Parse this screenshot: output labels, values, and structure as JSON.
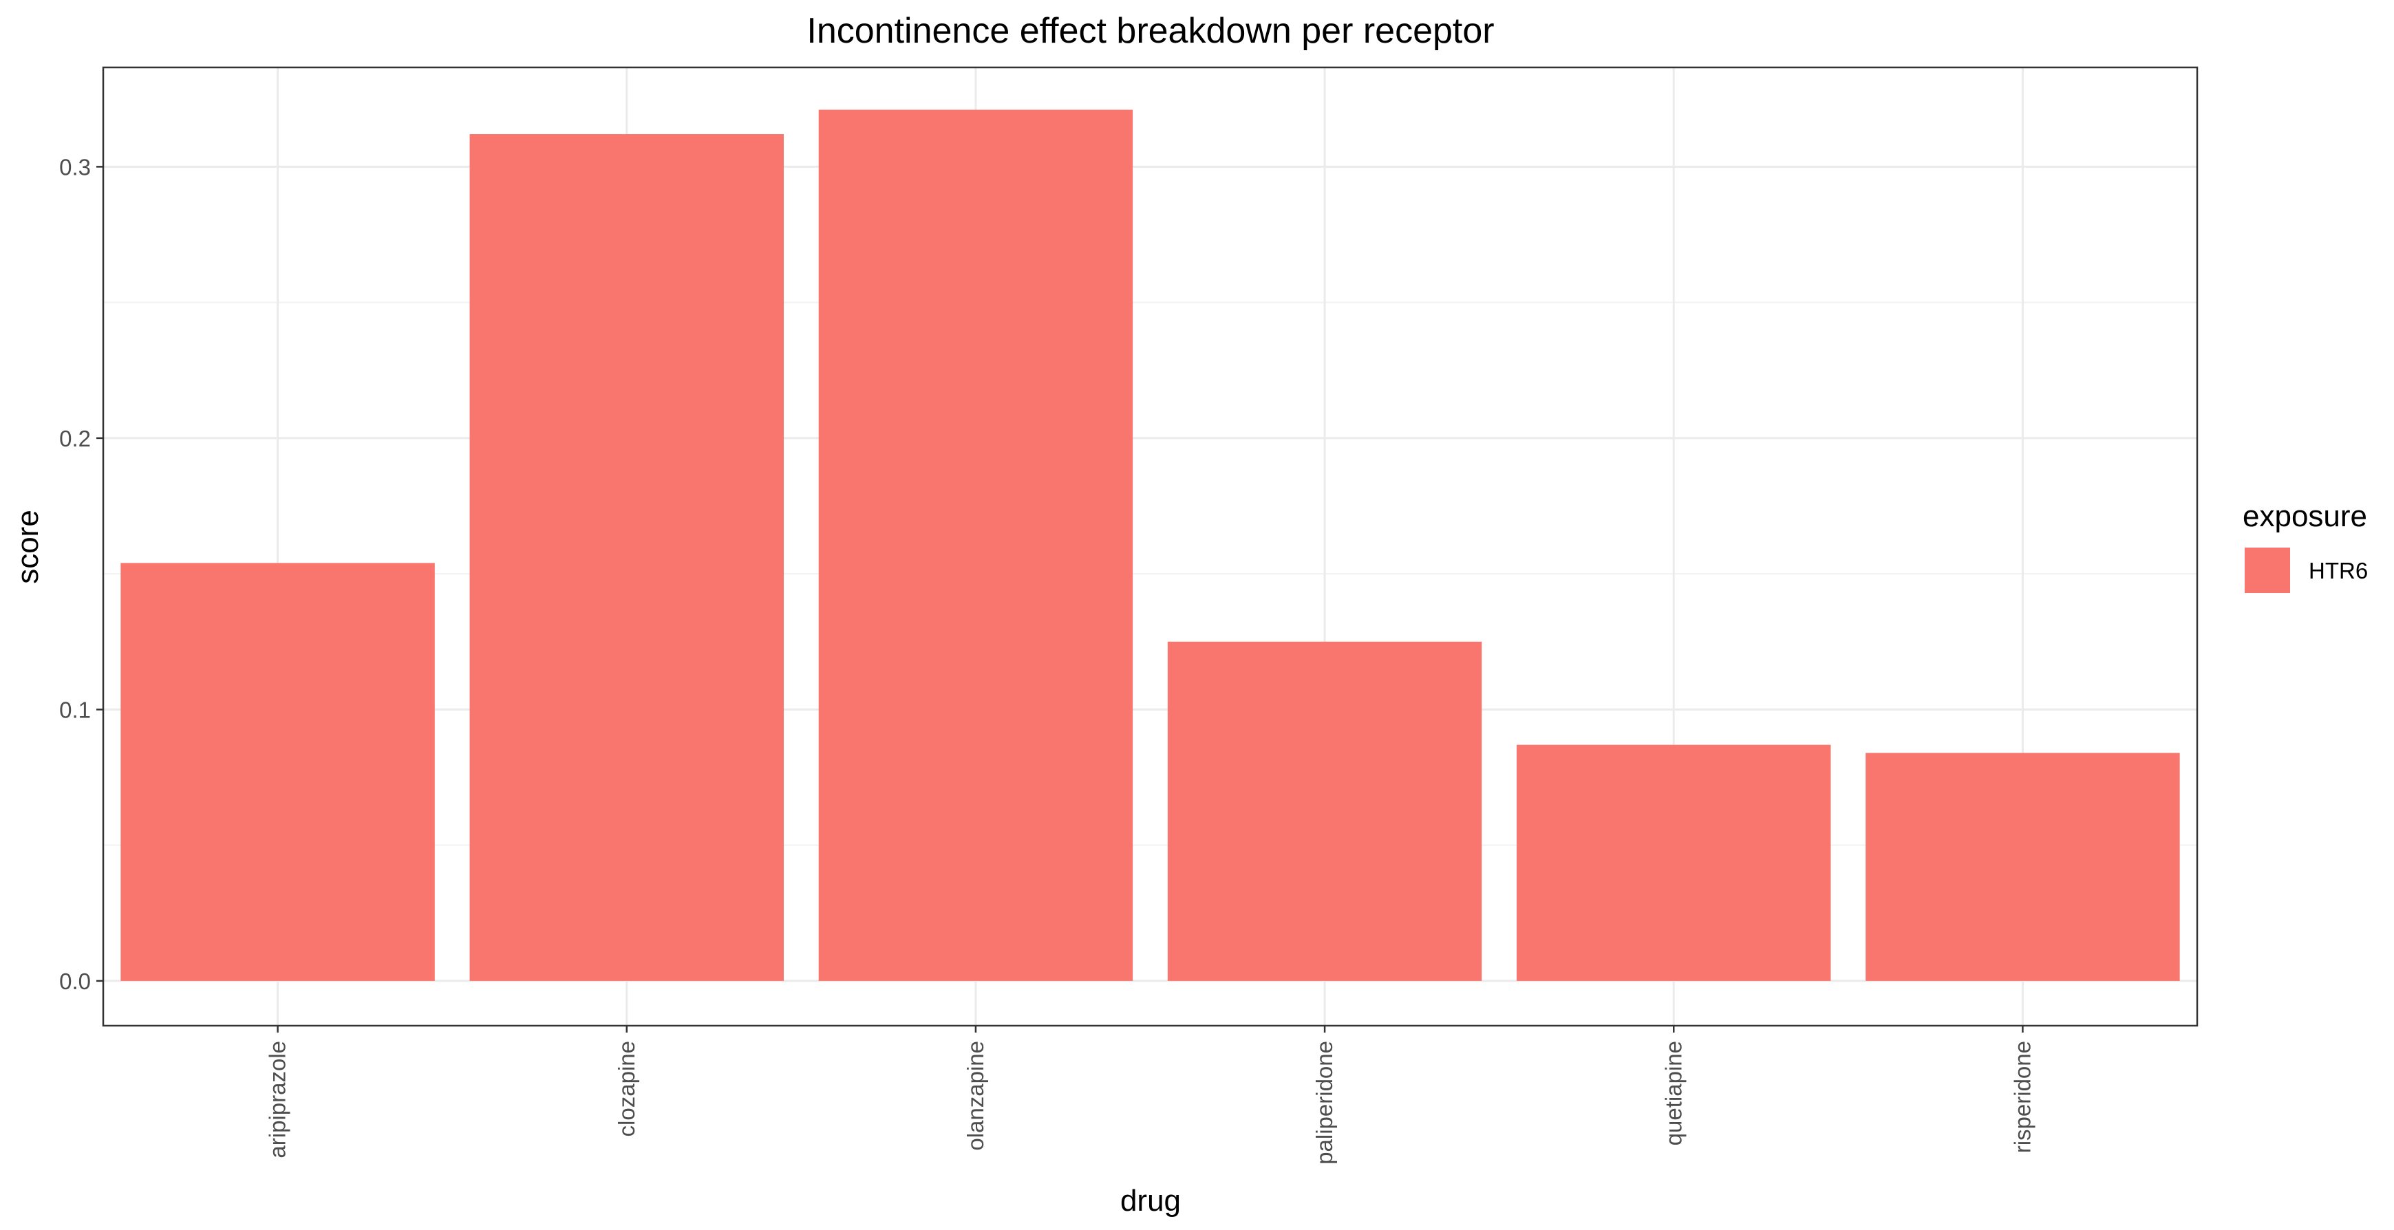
{
  "chart_data": {
    "type": "bar",
    "title": "Incontinence effect breakdown per receptor",
    "xlabel": "drug",
    "ylabel": "score",
    "categories": [
      "aripiprazole",
      "clozapine",
      "olanzapine",
      "paliperidone",
      "quetiapine",
      "risperidone"
    ],
    "series": [
      {
        "name": "HTR6",
        "values": [
          0.154,
          0.312,
          0.321,
          0.125,
          0.087,
          0.084
        ],
        "color": "#F8766D"
      }
    ],
    "ylim": [
      -0.0165,
      0.3366
    ],
    "yticks": [
      0.0,
      0.1,
      0.2,
      0.3
    ],
    "ytick_labels": [
      "0.0",
      "0.1",
      "0.2",
      "0.3"
    ],
    "grid": true,
    "legend": {
      "title": "exposure",
      "placement": "right",
      "entries": [
        "HTR6"
      ]
    },
    "theme": {
      "grid_major_color": "#ebebeb",
      "grid_minor_color": "#f2f2f2",
      "panel_border_color": "#333333",
      "tick_color": "#333333"
    }
  }
}
